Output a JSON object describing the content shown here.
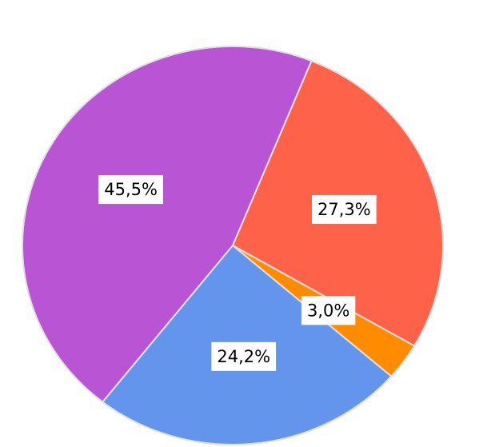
{
  "chart_data": {
    "type": "pie",
    "categories": [
      null,
      null,
      null,
      null
    ],
    "values": [
      27.3,
      3.0,
      24.2,
      45.5
    ],
    "value_labels": [
      "27,3%",
      "3,0%",
      "24,2%",
      "45,5%"
    ],
    "colors": [
      "#fe6349",
      "#ff8c00",
      "#6495ed",
      "#b955d4"
    ]
  }
}
